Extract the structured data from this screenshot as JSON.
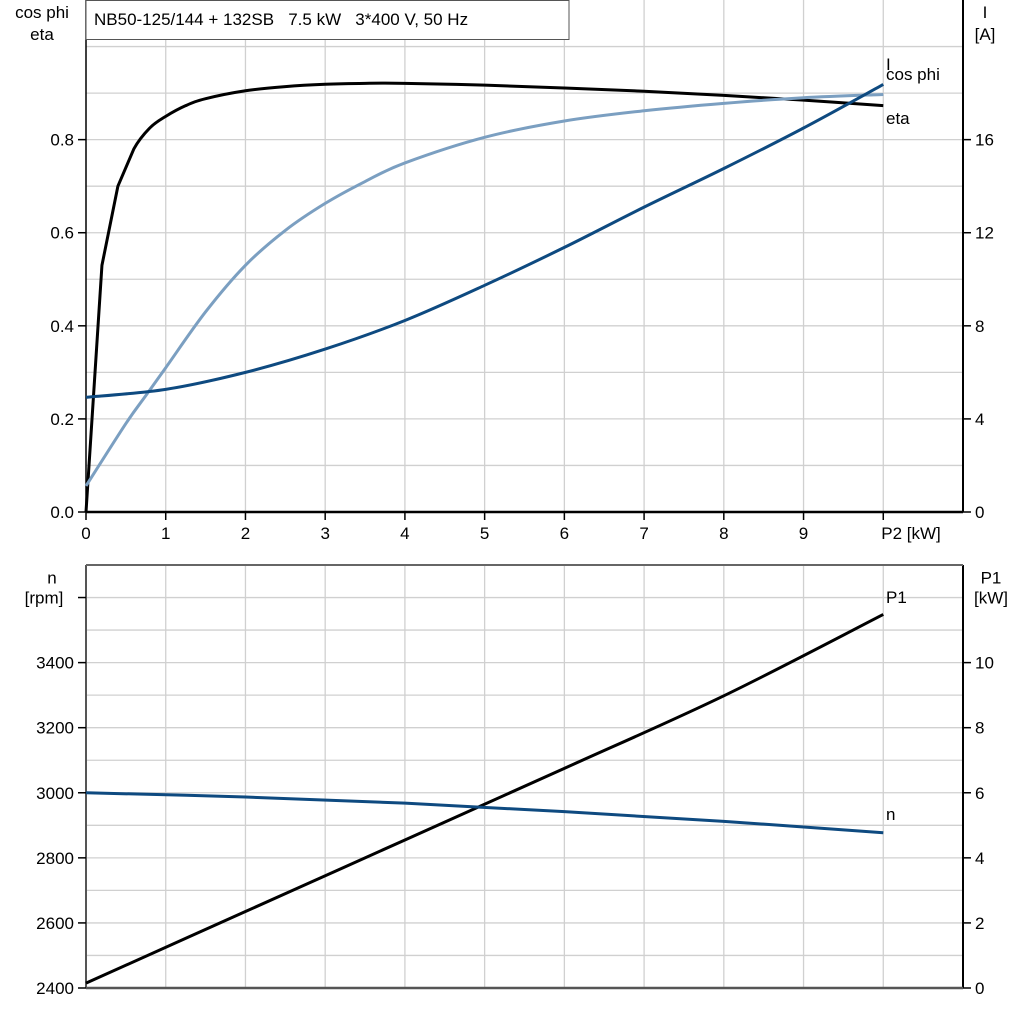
{
  "title": "NB50-125/144 + 132SB   7.5 kW   3*400 V, 50 Hz",
  "colors": {
    "eta": "#000000",
    "cos_phi": "#7b9fc1",
    "I": "#0e4a80",
    "n": "#0e4a80",
    "P1": "#000000",
    "grid": "#d0d0d0"
  },
  "chart_data": [
    {
      "type": "line",
      "xlabel": "P2 [kW]",
      "x_ticks": [
        0,
        1,
        2,
        3,
        4,
        5,
        6,
        7,
        8,
        9
      ],
      "xlim": [
        0,
        11
      ],
      "ylabel_left": [
        "cos phi",
        "eta"
      ],
      "ylim_left": [
        0,
        1.1
      ],
      "y_ticks_left": [
        "0.0",
        "0.2",
        "0.4",
        "0.6",
        "0.8"
      ],
      "ylabel_right": [
        "I",
        "[A]"
      ],
      "ylim_right": [
        0,
        22
      ],
      "y_ticks_right": [
        "0",
        "4",
        "8",
        "12",
        "16"
      ],
      "grid": true,
      "series": [
        {
          "name": "eta",
          "axis": "left",
          "x": [
            0,
            0.2,
            0.4,
            0.6,
            0.8,
            1,
            1.25,
            1.5,
            2,
            2.5,
            3,
            3.5,
            4,
            5,
            6,
            7,
            8,
            9,
            10
          ],
          "y": [
            0,
            0.53,
            0.7,
            0.78,
            0.825,
            0.85,
            0.873,
            0.888,
            0.905,
            0.914,
            0.919,
            0.921,
            0.921,
            0.917,
            0.911,
            0.904,
            0.895,
            0.885,
            0.873
          ]
        },
        {
          "name": "cos phi",
          "axis": "left",
          "x": [
            0,
            0.5,
            0.75,
            1,
            1.5,
            2,
            2.5,
            3,
            3.5,
            4,
            5,
            6,
            7,
            8,
            9,
            10
          ],
          "y": [
            0.056,
            0.19,
            0.25,
            0.31,
            0.43,
            0.53,
            0.605,
            0.663,
            0.71,
            0.75,
            0.805,
            0.84,
            0.862,
            0.878,
            0.89,
            0.897
          ]
        },
        {
          "name": "I",
          "axis": "right",
          "x": [
            0,
            1,
            2,
            3,
            4,
            5,
            6,
            7,
            8,
            9,
            10
          ],
          "y": [
            4.93,
            5.27,
            6.0,
            7.0,
            8.23,
            9.74,
            11.37,
            13.1,
            14.76,
            16.5,
            18.37
          ]
        }
      ]
    },
    {
      "type": "line",
      "xlim": [
        0,
        11
      ],
      "ylabel_left": [
        "n",
        "[rpm]"
      ],
      "ylim_left": [
        2400,
        3700
      ],
      "y_ticks_left": [
        "2400",
        "2600",
        "2800",
        "3000",
        "3200",
        "3400"
      ],
      "ylabel_right": [
        "P1",
        "[kW]"
      ],
      "ylim_right": [
        0,
        13
      ],
      "y_ticks_right": [
        "0",
        "2",
        "4",
        "6",
        "8",
        "10"
      ],
      "grid": true,
      "series": [
        {
          "name": "P1",
          "axis": "right",
          "x": [
            0,
            2,
            4,
            6,
            8,
            10
          ],
          "y": [
            0.15,
            2.35,
            4.55,
            6.75,
            8.98,
            11.48
          ]
        },
        {
          "name": "n",
          "axis": "left",
          "x": [
            0,
            2,
            4,
            6,
            8,
            10
          ],
          "y": [
            3000,
            2987,
            2968,
            2942,
            2912,
            2877
          ]
        }
      ]
    }
  ]
}
